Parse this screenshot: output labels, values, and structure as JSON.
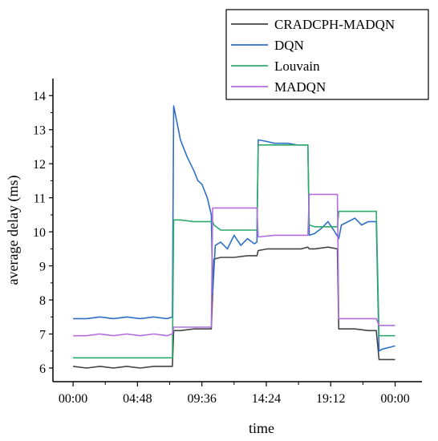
{
  "chart_data": {
    "type": "line",
    "xlabel": "time",
    "ylabel": "average delay (ms)",
    "x_ticks": [
      "00:00",
      "04:48",
      "09:36",
      "14:24",
      "19:12",
      "00:00"
    ],
    "x_tick_hours": [
      0,
      4.8,
      9.6,
      14.4,
      19.2,
      24
    ],
    "xlim": [
      -1.5,
      26
    ],
    "ylim": [
      5.6,
      14.5
    ],
    "y_ticks": [
      6,
      7,
      8,
      9,
      10,
      11,
      12,
      13,
      14
    ],
    "legend_position": "top-right",
    "grid": false,
    "series": [
      {
        "name": "CRADCPH-MADQN",
        "color": "#444444",
        "x": [
          0,
          1,
          2,
          3,
          4,
          5,
          6,
          7,
          7.4,
          7.5,
          8,
          9,
          10,
          10.3,
          10.5,
          11,
          12,
          13,
          13.7,
          13.8,
          14.5,
          15,
          16,
          17,
          17.5,
          17.6,
          18,
          19,
          19.7,
          19.8,
          20,
          21,
          22,
          22.6,
          22.8,
          23,
          24
        ],
        "y": [
          6.05,
          6.0,
          6.05,
          6.0,
          6.05,
          6.0,
          6.05,
          6.05,
          6.05,
          7.1,
          7.1,
          7.15,
          7.15,
          7.15,
          9.2,
          9.25,
          9.25,
          9.3,
          9.3,
          9.45,
          9.5,
          9.5,
          9.5,
          9.5,
          9.55,
          9.5,
          9.5,
          9.55,
          9.5,
          7.15,
          7.15,
          7.15,
          7.1,
          7.1,
          6.25,
          6.25,
          6.25
        ]
      },
      {
        "name": "DQN",
        "color": "#2e6ec6",
        "x": [
          0,
          1,
          2,
          3,
          4,
          5,
          6,
          7,
          7.4,
          7.5,
          7.7,
          8,
          8.5,
          9,
          9.3,
          9.6,
          10,
          10.3,
          10.4,
          10.6,
          11,
          11.5,
          12,
          12.5,
          13,
          13.5,
          13.7,
          13.8,
          14.5,
          15,
          16,
          16.7,
          17.5,
          17.6,
          18,
          18.5,
          19,
          19.5,
          19.8,
          20,
          20.5,
          21,
          21.5,
          22,
          22.6,
          22.8,
          23,
          24
        ],
        "y": [
          7.45,
          7.45,
          7.5,
          7.45,
          7.5,
          7.45,
          7.5,
          7.45,
          7.5,
          13.7,
          13.3,
          12.7,
          12.2,
          11.8,
          11.5,
          11.4,
          11.0,
          10.5,
          8.2,
          9.6,
          9.7,
          9.5,
          9.9,
          9.6,
          9.8,
          9.65,
          9.7,
          12.7,
          12.65,
          12.6,
          12.6,
          12.55,
          12.55,
          9.9,
          9.95,
          10.1,
          10.3,
          10.0,
          9.8,
          10.2,
          10.3,
          10.4,
          10.2,
          10.3,
          10.3,
          6.5,
          6.55,
          6.65
        ]
      },
      {
        "name": "Louvain",
        "color": "#2eaa6e",
        "x": [
          0,
          1,
          2,
          3,
          4,
          5,
          6,
          7,
          7.4,
          7.5,
          8,
          9,
          10,
          10.4,
          10.5,
          11,
          12,
          13,
          13.7,
          13.8,
          15,
          16,
          17.5,
          17.6,
          18,
          19,
          19.7,
          19.8,
          20,
          21,
          22,
          22.6,
          22.8,
          23,
          24
        ],
        "y": [
          6.3,
          6.3,
          6.3,
          6.3,
          6.3,
          6.3,
          6.3,
          6.3,
          6.3,
          10.35,
          10.35,
          10.3,
          10.3,
          10.3,
          10.2,
          10.05,
          10.05,
          10.05,
          10.05,
          12.55,
          12.55,
          12.55,
          12.55,
          10.2,
          10.15,
          10.15,
          10.15,
          10.6,
          10.6,
          10.6,
          10.6,
          10.6,
          6.95,
          6.95,
          6.95
        ]
      },
      {
        "name": "MADQN",
        "color": "#b26edc",
        "x": [
          0,
          1,
          2,
          3,
          4,
          5,
          6,
          7,
          7.4,
          7.5,
          8,
          9,
          10,
          10.3,
          10.4,
          11,
          12,
          13,
          13.7,
          13.8,
          15,
          16,
          17,
          17.5,
          17.6,
          18,
          19,
          19.7,
          19.8,
          20,
          21,
          22,
          22.6,
          22.8,
          23,
          24
        ],
        "y": [
          6.95,
          6.95,
          7.0,
          6.95,
          7.0,
          6.95,
          7.0,
          6.95,
          7.0,
          7.2,
          7.2,
          7.2,
          7.2,
          7.2,
          10.7,
          10.7,
          10.7,
          10.7,
          10.7,
          9.85,
          9.9,
          9.9,
          9.9,
          9.9,
          11.1,
          11.1,
          11.1,
          11.1,
          7.45,
          7.45,
          7.45,
          7.45,
          7.45,
          7.25,
          7.25,
          7.25
        ]
      }
    ]
  }
}
